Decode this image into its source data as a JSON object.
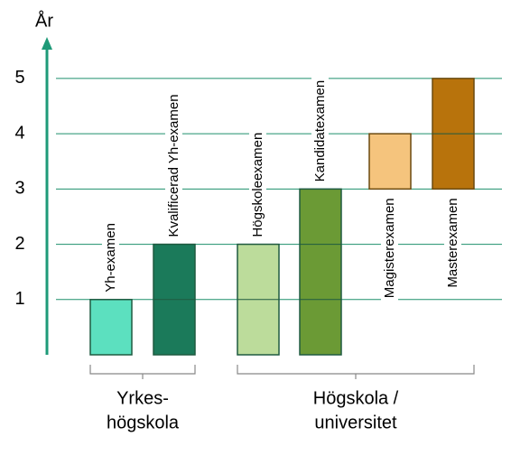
{
  "chart_data": {
    "type": "bar",
    "y_label": "År",
    "ylim": [
      0,
      5.75
    ],
    "yticks": [
      1,
      2,
      3,
      4,
      5
    ],
    "grid": true,
    "bars": [
      {
        "label": "Yh-examen",
        "color": "#5ce0bf",
        "from": 0,
        "to": 1
      },
      {
        "label": "Kvalificerad Yh-examen",
        "color": "#1b7a5a",
        "from": 0,
        "to": 2
      },
      {
        "label": "Högskoleexamen",
        "color": "#bcdc9b",
        "from": 0,
        "to": 2
      },
      {
        "label": "Kandidatexamen",
        "color": "#6b9a35",
        "from": 0,
        "to": 3
      },
      {
        "label": "Magisterexamen",
        "color": "#f5c47d",
        "from": 3,
        "to": 4
      },
      {
        "label": "Masterexamen",
        "color": "#b8730c",
        "from": 3,
        "to": 5
      }
    ],
    "groups": [
      {
        "label": [
          "Yrkes-",
          "högskola"
        ],
        "bars": [
          0,
          1
        ]
      },
      {
        "label": [
          "Högskola /",
          "universitet"
        ],
        "bars": [
          2,
          3,
          4,
          5
        ]
      }
    ]
  }
}
